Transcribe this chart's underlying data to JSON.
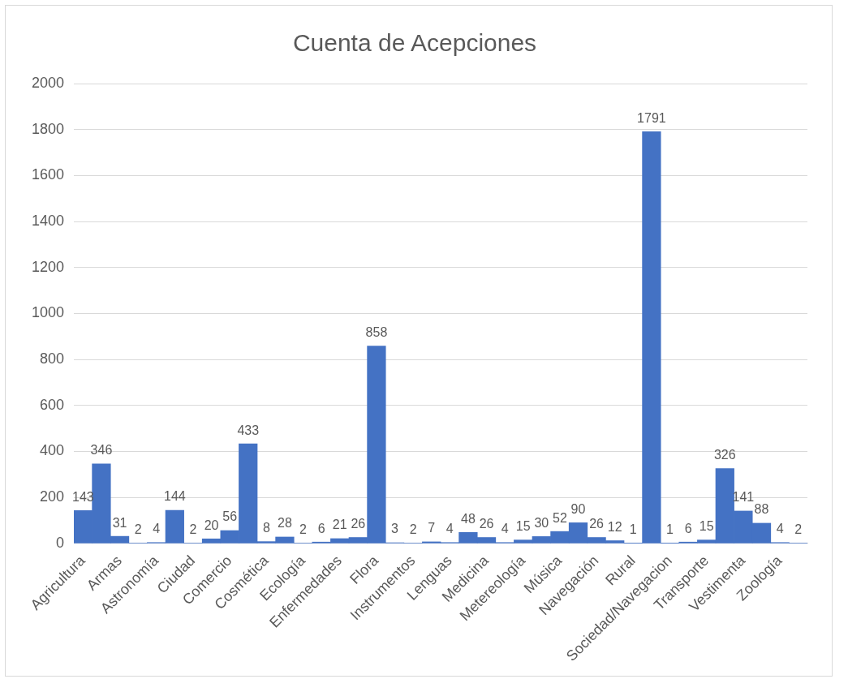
{
  "chart_data": {
    "type": "bar",
    "title": "Cuenta de Acepciones",
    "categories": [
      "Agricultura",
      null,
      "Armas",
      null,
      "Astronomía",
      null,
      "Ciudad",
      null,
      "Comercio",
      null,
      "Cosmética",
      null,
      "Ecología",
      null,
      "Enfermedades",
      null,
      "Flora",
      null,
      "Instrumentos",
      null,
      "Lenguas",
      null,
      "Medicina",
      null,
      "Metereología",
      null,
      "Música",
      null,
      "Navegación",
      null,
      "Rural",
      null,
      "Sociedad/Navegacion",
      null,
      "Transporte",
      null,
      "Vestimenta",
      null,
      "Zoología",
      null
    ],
    "values": [
      143,
      346,
      31,
      2,
      4,
      144,
      2,
      20,
      56,
      433,
      8,
      28,
      2,
      6,
      21,
      26,
      858,
      3,
      2,
      7,
      4,
      48,
      26,
      4,
      15,
      30,
      52,
      90,
      26,
      12,
      1,
      1791,
      1,
      6,
      15,
      326,
      141,
      88,
      4,
      2
    ],
    "color": "#4472c4",
    "ylim": [
      0,
      2000
    ],
    "yticks": [
      0,
      200,
      400,
      600,
      800,
      1000,
      1200,
      1400,
      1600,
      1800,
      2000
    ],
    "grid": "y",
    "data_labels": true
  }
}
